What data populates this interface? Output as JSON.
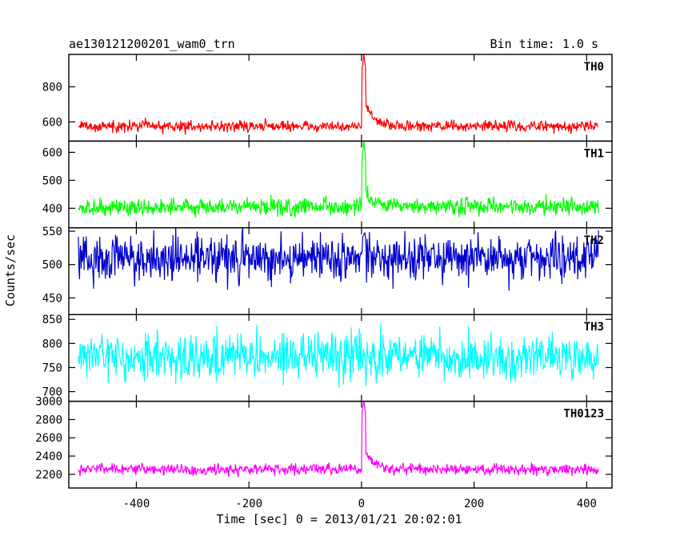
{
  "header": {
    "title": "ae130121200201_wam0_trn",
    "bin_time": "Bin time: 1.0 s"
  },
  "chart_data": {
    "type": "line",
    "xlabel": "Time [sec] 0 = 2013/01/21 20:02:01",
    "ylabel": "Counts/sec",
    "xlim": [
      -520,
      445
    ],
    "x_ticks": [
      -400,
      -200,
      0,
      200,
      400
    ],
    "x_range_data": [
      -503,
      421
    ],
    "trigger_time": 4,
    "panels": [
      {
        "name": "TH0",
        "color": "#ff0000",
        "ylim": [
          490,
          985
        ],
        "y_ticks": [
          600,
          800
        ],
        "baseline": 575,
        "noise": 22,
        "peak_value": 985,
        "peak_halfwidth": 3,
        "decay_amp": 130,
        "decay_tau": 14
      },
      {
        "name": "TH1",
        "color": "#00ff00",
        "ylim": [
          330,
          640
        ],
        "y_ticks": [
          400,
          500,
          600
        ],
        "baseline": 405,
        "noise": 22,
        "peak_value": 630,
        "peak_halfwidth": 3,
        "decay_amp": 60,
        "decay_tau": 10
      },
      {
        "name": "TH2",
        "color": "#0000cc",
        "ylim": [
          425,
          555
        ],
        "y_ticks": [
          450,
          500,
          550
        ],
        "baseline": 510,
        "noise": 24,
        "peak_value": 550,
        "peak_halfwidth": 2,
        "decay_amp": 0,
        "decay_tau": 5
      },
      {
        "name": "TH3",
        "color": "#00ffff",
        "ylim": [
          680,
          860
        ],
        "y_ticks": [
          700,
          750,
          800,
          850
        ],
        "baseline": 772,
        "noise": 33,
        "peak_value": 780,
        "peak_halfwidth": 1,
        "decay_amp": 0,
        "decay_tau": 5
      },
      {
        "name": "TH0123",
        "color": "#ff00ff",
        "ylim": [
          2050,
          3000
        ],
        "y_ticks": [
          2200,
          2400,
          2600,
          2800,
          3000
        ],
        "baseline": 2255,
        "noise": 42,
        "peak_value": 3000,
        "peak_halfwidth": 3,
        "decay_amp": 220,
        "decay_tau": 14
      }
    ]
  }
}
